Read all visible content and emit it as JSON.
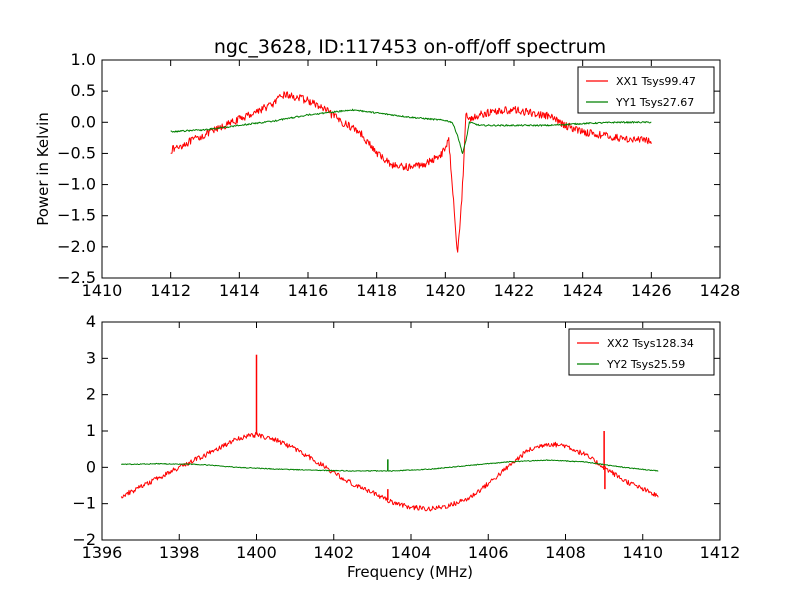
{
  "title": "ngc_3628, ID:117453 on-off/off spectrum",
  "xlabel": "Frequency (MHz)",
  "ylabel": "Power in Kelvin",
  "chart_data": [
    {
      "type": "line",
      "title": "ngc_3628, ID:117453 on-off/off spectrum",
      "xlabel": "",
      "ylabel": "Power in Kelvin",
      "xlim": [
        1410,
        1428
      ],
      "ylim": [
        -2.5,
        1.0
      ],
      "xticks": [
        1410,
        1412,
        1414,
        1416,
        1418,
        1420,
        1422,
        1424,
        1426,
        1428
      ],
      "xtick_labels": [
        "1410",
        "1412",
        "1414",
        "1416",
        "1418",
        "1420",
        "1422",
        "1424",
        "1426",
        "1428"
      ],
      "yticks": [
        -2.5,
        -2.0,
        -1.5,
        -1.0,
        -0.5,
        0.0,
        0.5,
        1.0
      ],
      "ytick_labels": [
        "−2.5",
        "−2.0",
        "−1.5",
        "−1.0",
        "−0.5",
        "0.0",
        "0.5",
        "1.0"
      ],
      "legend_position": "top-right",
      "grid": false,
      "series": [
        {
          "name": "XX1 Tsys99.47",
          "color": "#ff0000",
          "noise": 0.06,
          "x": [
            1412.0,
            1413.0,
            1414.0,
            1415.0,
            1415.3,
            1416.0,
            1416.5,
            1417.0,
            1417.5,
            1418.0,
            1418.5,
            1419.0,
            1419.5,
            1419.9,
            1420.1,
            1420.25,
            1420.35,
            1420.45,
            1420.55,
            1420.6,
            1420.7,
            1421.0,
            1421.5,
            1422.0,
            1422.5,
            1423.0,
            1423.5,
            1424.0,
            1425.0,
            1426.0
          ],
          "y": [
            -0.45,
            -0.2,
            0.05,
            0.3,
            0.45,
            0.35,
            0.2,
            0.0,
            -0.15,
            -0.5,
            -0.7,
            -0.72,
            -0.65,
            -0.5,
            -0.3,
            -1.3,
            -2.1,
            -1.5,
            -0.5,
            0.15,
            0.05,
            0.12,
            0.18,
            0.2,
            0.15,
            0.1,
            -0.05,
            -0.15,
            -0.25,
            -0.3
          ],
          "spikes": []
        },
        {
          "name": "YY1 Tsys27.67",
          "color": "#008000",
          "noise": 0.012,
          "x": [
            1412.0,
            1413.0,
            1414.0,
            1415.0,
            1416.0,
            1417.0,
            1417.3,
            1418.0,
            1419.0,
            1420.0,
            1420.2,
            1420.35,
            1420.5,
            1420.6,
            1420.7,
            1421.0,
            1422.0,
            1423.0,
            1424.0,
            1425.0,
            1426.0
          ],
          "y": [
            -0.15,
            -0.12,
            -0.05,
            0.02,
            0.12,
            0.18,
            0.2,
            0.15,
            0.08,
            0.03,
            0.0,
            -0.2,
            -0.5,
            -0.3,
            0.0,
            -0.05,
            -0.05,
            -0.05,
            -0.02,
            0.0,
            0.0
          ],
          "spikes": []
        }
      ]
    },
    {
      "type": "line",
      "title": "",
      "xlabel": "Frequency (MHz)",
      "ylabel": "",
      "xlim": [
        1396,
        1412
      ],
      "ylim": [
        -2,
        4
      ],
      "xticks": [
        1396,
        1398,
        1400,
        1402,
        1404,
        1406,
        1408,
        1410,
        1412
      ],
      "xtick_labels": [
        "1396",
        "1398",
        "1400",
        "1402",
        "1404",
        "1406",
        "1408",
        "1410",
        "1412"
      ],
      "yticks": [
        -2,
        -1,
        0,
        1,
        2,
        3,
        4
      ],
      "ytick_labels": [
        "−2",
        "−1",
        "0",
        "1",
        "2",
        "3",
        "4"
      ],
      "legend_position": "top-right",
      "grid": false,
      "series": [
        {
          "name": "XX2 Tsys128.34",
          "color": "#ff0000",
          "noise": 0.07,
          "x": [
            1396.5,
            1397.0,
            1398.0,
            1399.0,
            1399.5,
            1400.0,
            1400.5,
            1401.0,
            1401.5,
            1402.0,
            1402.5,
            1403.0,
            1403.5,
            1404.0,
            1404.5,
            1405.0,
            1405.5,
            1406.0,
            1406.5,
            1407.0,
            1407.5,
            1408.0,
            1408.5,
            1409.0,
            1409.5,
            1410.0,
            1410.4
          ],
          "y": [
            -0.8,
            -0.55,
            0.0,
            0.5,
            0.8,
            0.9,
            0.75,
            0.5,
            0.2,
            -0.15,
            -0.45,
            -0.7,
            -0.95,
            -1.1,
            -1.15,
            -1.05,
            -0.85,
            -0.45,
            0.0,
            0.45,
            0.65,
            0.6,
            0.35,
            0.0,
            -0.35,
            -0.6,
            -0.8
          ],
          "spikes": [
            {
              "x": 1400.0,
              "y": 3.1
            },
            {
              "x": 1403.4,
              "y": -0.6
            },
            {
              "x": 1409.0,
              "y": 1.0
            },
            {
              "x": 1409.02,
              "y": -0.6
            }
          ]
        },
        {
          "name": "YY2 Tsys25.59",
          "color": "#008000",
          "noise": 0.012,
          "x": [
            1396.5,
            1397.5,
            1398.5,
            1399.5,
            1400.5,
            1401.5,
            1402.5,
            1403.5,
            1404.5,
            1405.5,
            1406.5,
            1407.5,
            1408.5,
            1409.5,
            1410.4
          ],
          "y": [
            0.08,
            0.1,
            0.08,
            0.0,
            -0.05,
            -0.08,
            -0.1,
            -0.1,
            -0.05,
            0.05,
            0.15,
            0.2,
            0.15,
            0.0,
            -0.1
          ],
          "spikes": [
            {
              "x": 1403.4,
              "y": 0.22
            }
          ]
        }
      ]
    }
  ]
}
